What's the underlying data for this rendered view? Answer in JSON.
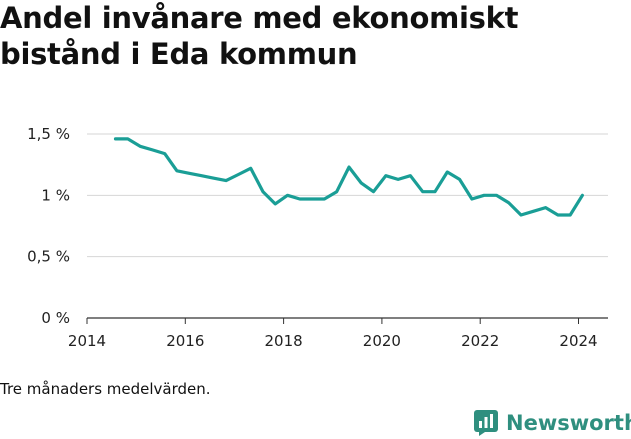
{
  "title": "Andel invånare med ekonomiskt bistånd i Eda kommun",
  "note": "Tre månaders medelvärden.",
  "brand": {
    "name": "Newsworthy",
    "icon": "bar-chart-icon",
    "color": "#2f8f7f"
  },
  "chart_data": {
    "type": "line",
    "title": "Andel invånare med ekonomiskt bistånd i Eda kommun",
    "xlabel": "",
    "ylabel": "",
    "x_ticks": [
      "2014",
      "2016",
      "2018",
      "2020",
      "2022",
      "2024"
    ],
    "y_ticks": [
      "0 %",
      "0,5 %",
      "1 %",
      "1,5 %"
    ],
    "xlim": [
      2014,
      2024.6
    ],
    "ylim": [
      0,
      1.5
    ],
    "grid": "horizontal",
    "line_color": "#1a9e96",
    "series": [
      {
        "x": [
          2014.58,
          2014.83,
          2015.08,
          2015.33,
          2015.58,
          2015.83,
          2016.08,
          2016.33,
          2016.58,
          2016.83,
          2017.08,
          2017.33,
          2017.58,
          2017.83,
          2018.08,
          2018.33,
          2018.58,
          2018.83,
          2019.08,
          2019.33,
          2019.58,
          2019.83,
          2020.08,
          2020.33,
          2020.58,
          2020.83,
          2021.08,
          2021.33,
          2021.58,
          2021.83,
          2022.08,
          2022.33,
          2022.58,
          2022.83,
          2023.08,
          2023.33,
          2023.58,
          2023.83,
          2024.08
        ],
        "y": [
          1.46,
          1.46,
          1.4,
          1.37,
          1.34,
          1.2,
          1.18,
          1.16,
          1.14,
          1.12,
          1.17,
          1.22,
          1.03,
          0.93,
          1.0,
          0.97,
          0.97,
          0.97,
          1.03,
          1.23,
          1.1,
          1.03,
          1.16,
          1.13,
          1.16,
          1.03,
          1.03,
          1.19,
          1.13,
          0.97,
          1.0,
          1.0,
          0.94,
          0.84,
          0.87,
          0.9,
          0.84,
          0.84,
          1.0
        ]
      }
    ]
  }
}
